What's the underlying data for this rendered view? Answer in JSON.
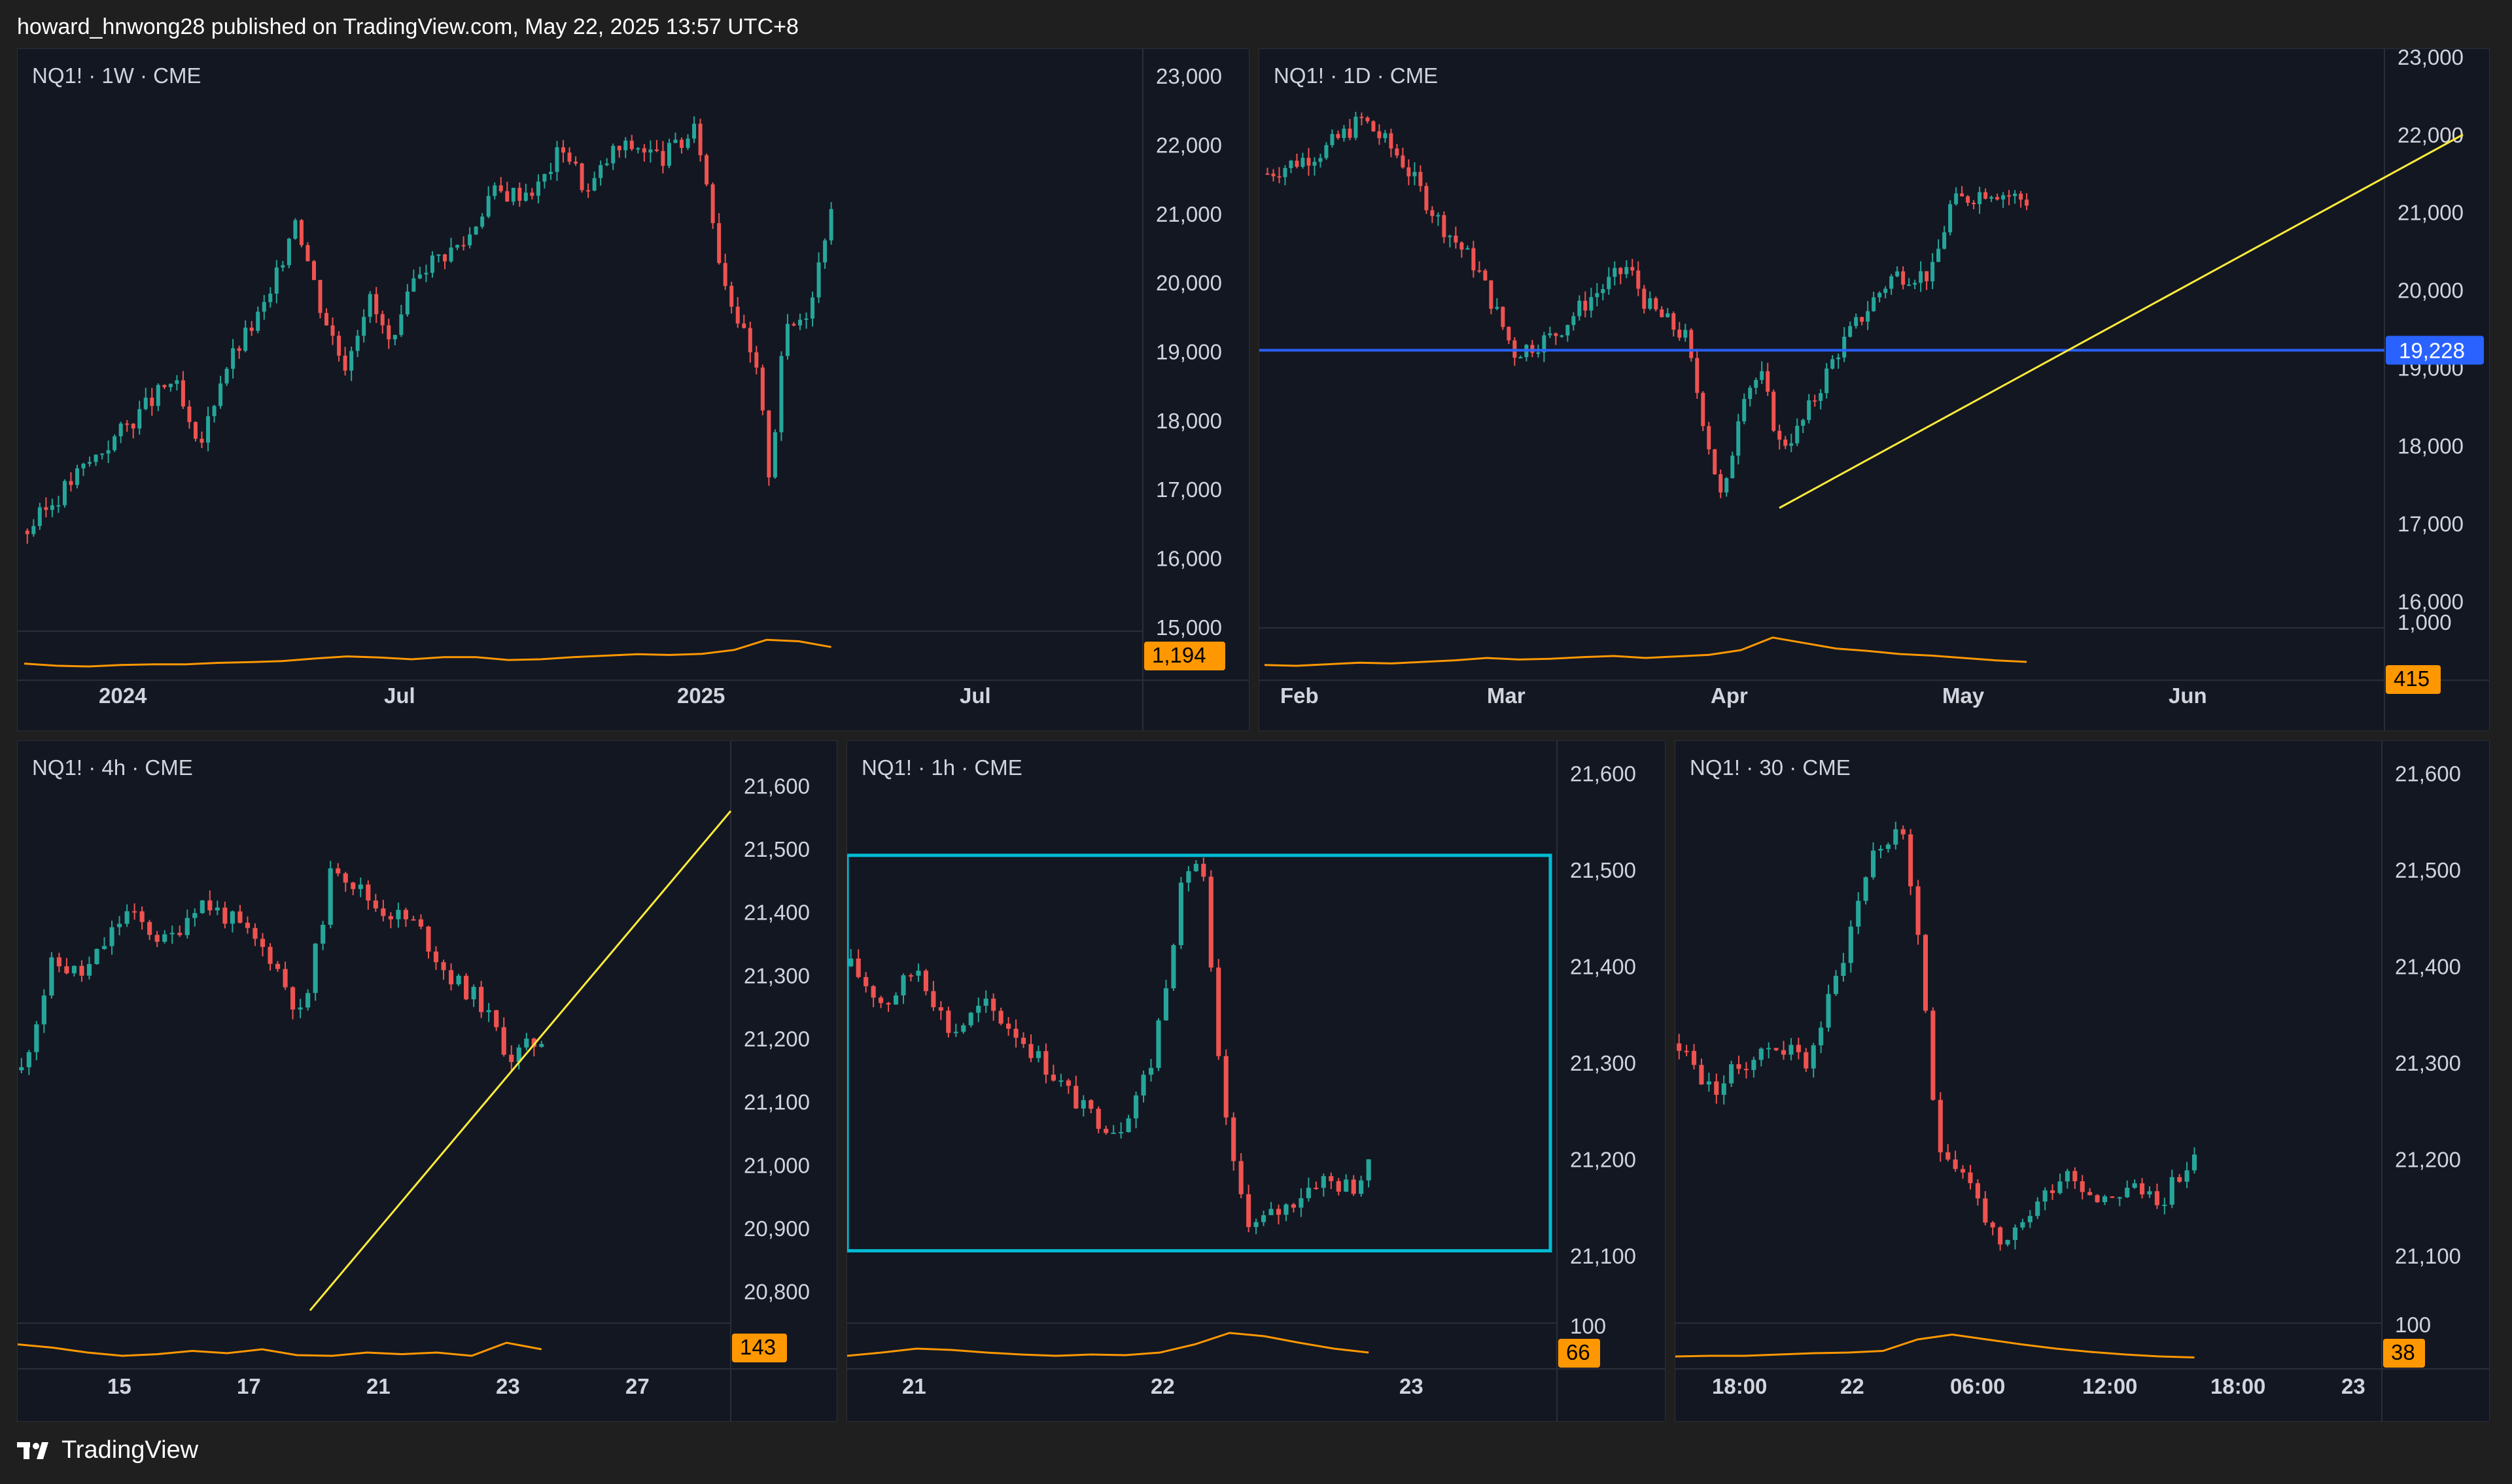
{
  "header": {
    "attribution": "howard_hnwong28 published on TradingView.com, May 22, 2025 13:57 UTC+8"
  },
  "footer": {
    "brand": "TradingView"
  },
  "colors": {
    "up": "#26a69a",
    "down": "#ef5350",
    "volume": "#ff9800",
    "hline": "#2962ff",
    "trendline": "#ffeb3b",
    "rect": "#00bcd4",
    "background": "#131722",
    "grid_border": "#2a2e39"
  },
  "chart_data": [
    {
      "type": "candlestick",
      "title": "NQ1! · 1W · CME",
      "ylim": [
        14800,
        23200
      ],
      "y_ticks": [
        "15,000",
        "16,000",
        "17,000",
        "18,000",
        "19,000",
        "20,000",
        "21,000",
        "22,000",
        "23,000"
      ],
      "x_ticks": [
        "2024",
        "Jul",
        "2025",
        "Jul"
      ],
      "volume_badge": "1,194",
      "price_path": [
        [
          0,
          16400
        ],
        [
          4,
          17200
        ],
        [
          8,
          17900
        ],
        [
          12,
          18600
        ],
        [
          14,
          17500
        ],
        [
          16,
          18700
        ],
        [
          20,
          19800
        ],
        [
          22,
          21000
        ],
        [
          24,
          19700
        ],
        [
          26,
          18800
        ],
        [
          28,
          19800
        ],
        [
          30,
          19000
        ],
        [
          32,
          20200
        ],
        [
          36,
          20600
        ],
        [
          38,
          21300
        ],
        [
          40,
          21300
        ],
        [
          42,
          21400
        ],
        [
          44,
          22000
        ],
        [
          46,
          21300
        ],
        [
          48,
          21900
        ],
        [
          50,
          22000
        ],
        [
          52,
          21800
        ],
        [
          55,
          22200
        ],
        [
          57,
          20200
        ],
        [
          60,
          18600
        ],
        [
          61,
          17100
        ],
        [
          62,
          19200
        ],
        [
          64,
          19600
        ],
        [
          65,
          20300
        ],
        [
          66,
          21200
        ]
      ],
      "volume_path": [
        0.28,
        0.22,
        0.2,
        0.24,
        0.26,
        0.26,
        0.3,
        0.32,
        0.35,
        0.42,
        0.48,
        0.45,
        0.4,
        0.46,
        0.46,
        0.38,
        0.4,
        0.46,
        0.5,
        0.54,
        0.52,
        0.55,
        0.66,
        0.94,
        0.9,
        0.74
      ]
    },
    {
      "type": "candlestick",
      "title": "NQ1! · 1D · CME",
      "ylim": [
        15700,
        23100
      ],
      "y_ticks": [
        "16,000",
        "17,000",
        "18,000",
        "19,000",
        "20,000",
        "21,000",
        "22,000",
        "23,000"
      ],
      "x_ticks": [
        "Feb",
        "Mar",
        "Apr",
        "May",
        "Jun"
      ],
      "hline_value": 19228,
      "hline_label": "19,228",
      "trendline": [
        [
          17200,
          0.428
        ],
        [
          22000,
          0.998
        ]
      ],
      "volume_badge": "415",
      "volume_top_label": "1,000",
      "price_path": [
        [
          0,
          21500
        ],
        [
          6,
          21800
        ],
        [
          10,
          22200
        ],
        [
          14,
          21700
        ],
        [
          18,
          20900
        ],
        [
          22,
          20300
        ],
        [
          26,
          19200
        ],
        [
          30,
          19400
        ],
        [
          34,
          19900
        ],
        [
          38,
          20300
        ],
        [
          40,
          19800
        ],
        [
          44,
          19400
        ],
        [
          46,
          18300
        ],
        [
          48,
          17200
        ],
        [
          50,
          18700
        ],
        [
          52,
          18900
        ],
        [
          54,
          18000
        ],
        [
          56,
          18200
        ],
        [
          60,
          19200
        ],
        [
          64,
          19900
        ],
        [
          66,
          20200
        ],
        [
          70,
          20200
        ],
        [
          72,
          21100
        ],
        [
          76,
          21300
        ],
        [
          80,
          21150
        ]
      ],
      "volume_path": [
        0.22,
        0.2,
        0.24,
        0.28,
        0.26,
        0.3,
        0.34,
        0.4,
        0.36,
        0.38,
        0.42,
        0.45,
        0.4,
        0.44,
        0.48,
        0.6,
        0.92,
        0.78,
        0.64,
        0.58,
        0.5,
        0.46,
        0.4,
        0.34,
        0.3
      ]
    },
    {
      "type": "candlestick",
      "title": "NQ1! · 4h · CME",
      "ylim": [
        20750,
        21650
      ],
      "y_ticks": [
        "20,800",
        "20,900",
        "21,000",
        "21,100",
        "21,200",
        "21,300",
        "21,400",
        "21,500",
        "21,600"
      ],
      "x_ticks": [
        "15",
        "17",
        "21",
        "23",
        "27"
      ],
      "trendline": [
        [
          20770,
          0.41
        ],
        [
          21560,
          1.0
        ]
      ],
      "volume_badge": "143",
      "price_path": [
        [
          0,
          21150
        ],
        [
          3,
          21320
        ],
        [
          6,
          21300
        ],
        [
          10,
          21400
        ],
        [
          14,
          21350
        ],
        [
          17,
          21420
        ],
        [
          20,
          21390
        ],
        [
          24,
          21330
        ],
        [
          27,
          21230
        ],
        [
          30,
          21480
        ],
        [
          34,
          21410
        ],
        [
          38,
          21380
        ],
        [
          41,
          21300
        ],
        [
          44,
          21260
        ],
        [
          47,
          21170
        ],
        [
          50,
          21200
        ]
      ],
      "volume_path": [
        0.55,
        0.45,
        0.3,
        0.2,
        0.25,
        0.35,
        0.28,
        0.4,
        0.22,
        0.2,
        0.3,
        0.25,
        0.3,
        0.2,
        0.6,
        0.4
      ]
    },
    {
      "type": "candlestick",
      "title": "NQ1! · 1h · CME",
      "ylim": [
        21030,
        21620
      ],
      "y_ticks": [
        "21,100",
        "21,200",
        "21,300",
        "21,400",
        "21,500",
        "21,600"
      ],
      "x_ticks": [
        "21",
        "22",
        "23"
      ],
      "range_box": {
        "top": 21515,
        "bottom": 21105
      },
      "volume_badge": "66",
      "volume_top_label": "100",
      "price_path": [
        [
          0,
          21400
        ],
        [
          4,
          21360
        ],
        [
          8,
          21400
        ],
        [
          12,
          21330
        ],
        [
          16,
          21360
        ],
        [
          20,
          21330
        ],
        [
          24,
          21290
        ],
        [
          28,
          21250
        ],
        [
          32,
          21230
        ],
        [
          36,
          21300
        ],
        [
          40,
          21500
        ],
        [
          42,
          21510
        ],
        [
          44,
          21300
        ],
        [
          46,
          21180
        ],
        [
          48,
          21130
        ],
        [
          52,
          21150
        ],
        [
          56,
          21180
        ],
        [
          60,
          21170
        ],
        [
          62,
          21190
        ]
      ],
      "volume_path": [
        0.2,
        0.3,
        0.42,
        0.38,
        0.3,
        0.24,
        0.2,
        0.24,
        0.22,
        0.3,
        0.55,
        0.9,
        0.8,
        0.6,
        0.42,
        0.3
      ]
    },
    {
      "type": "candlestick",
      "title": "NQ1! · 30 · CME",
      "ylim": [
        21030,
        21620
      ],
      "y_ticks": [
        "21,100",
        "21,200",
        "21,300",
        "21,400",
        "21,500",
        "21,600"
      ],
      "x_ticks": [
        "18:00",
        "22",
        "06:00",
        "12:00",
        "18:00",
        "23"
      ],
      "volume_badge": "38",
      "volume_top_label": "100",
      "price_path": [
        [
          0,
          21320
        ],
        [
          4,
          21270
        ],
        [
          8,
          21300
        ],
        [
          12,
          21320
        ],
        [
          16,
          21300
        ],
        [
          20,
          21400
        ],
        [
          24,
          21520
        ],
        [
          28,
          21540
        ],
        [
          30,
          21400
        ],
        [
          32,
          21220
        ],
        [
          36,
          21180
        ],
        [
          40,
          21100
        ],
        [
          44,
          21150
        ],
        [
          48,
          21190
        ],
        [
          52,
          21160
        ],
        [
          56,
          21170
        ],
        [
          60,
          21160
        ],
        [
          64,
          21200
        ]
      ],
      "volume_path": [
        0.18,
        0.2,
        0.2,
        0.24,
        0.28,
        0.3,
        0.35,
        0.7,
        0.85,
        0.7,
        0.55,
        0.42,
        0.32,
        0.24,
        0.18,
        0.15
      ]
    }
  ]
}
